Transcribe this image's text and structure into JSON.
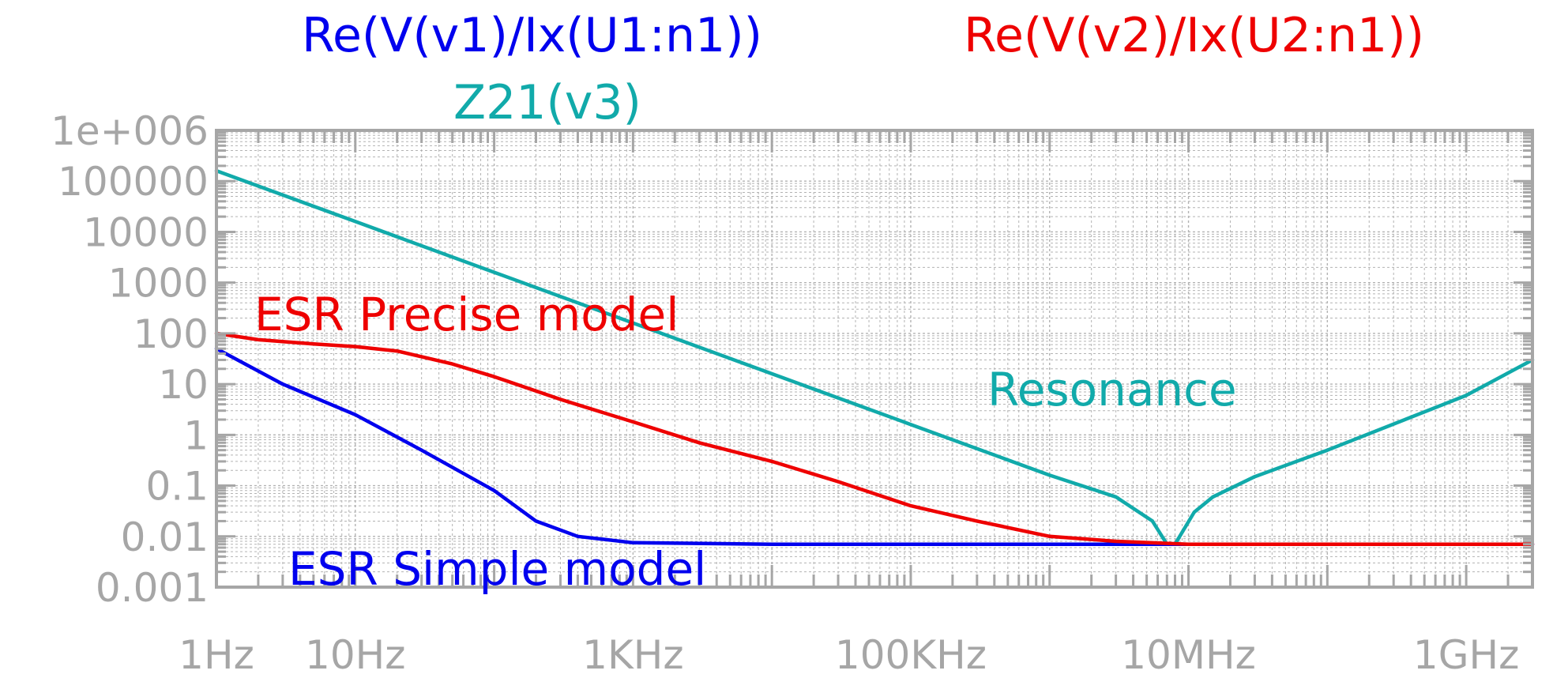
{
  "chart_data": {
    "type": "line",
    "x_scale": "log",
    "y_scale": "log",
    "xlim_hz": [
      1,
      3000000000
    ],
    "ylim": [
      0.001,
      1000000
    ],
    "x_ticks": [
      {
        "value": 1,
        "label": "1Hz"
      },
      {
        "value": 10,
        "label": "10Hz"
      },
      {
        "value": 1000,
        "label": "1KHz"
      },
      {
        "value": 100000,
        "label": "100KHz"
      },
      {
        "value": 10000000,
        "label": "10MHz"
      },
      {
        "value": 1000000000,
        "label": "1GHz"
      }
    ],
    "y_ticks": [
      {
        "value": 1000000,
        "label": "1e+006"
      },
      {
        "value": 100000,
        "label": "100000"
      },
      {
        "value": 10000,
        "label": "10000"
      },
      {
        "value": 1000,
        "label": "1000"
      },
      {
        "value": 100,
        "label": "100"
      },
      {
        "value": 10,
        "label": "10"
      },
      {
        "value": 1,
        "label": "1"
      },
      {
        "value": 0.1,
        "label": "0.1"
      },
      {
        "value": 0.01,
        "label": "0.01"
      },
      {
        "value": 0.001,
        "label": "0.001"
      }
    ],
    "grid": true,
    "colors": {
      "frame": "#a6a6a6",
      "grid": "#b3b3b3"
    },
    "series": [
      {
        "name": "Re(V(v1)/Ix(U1:n1))",
        "color": "#0000ee",
        "points": [
          [
            1,
            50
          ],
          [
            3,
            10
          ],
          [
            10,
            2.5
          ],
          [
            30,
            0.5
          ],
          [
            100,
            0.08
          ],
          [
            200,
            0.02
          ],
          [
            400,
            0.01
          ],
          [
            1000,
            0.0075
          ],
          [
            10000,
            0.007
          ],
          [
            3000000000,
            0.007
          ]
        ]
      },
      {
        "name": "Re(V(v2)/Ix(U2:n1))",
        "color": "#ee0000",
        "points": [
          [
            1,
            100
          ],
          [
            2,
            75
          ],
          [
            5,
            62
          ],
          [
            10,
            55
          ],
          [
            20,
            45
          ],
          [
            50,
            25
          ],
          [
            100,
            14
          ],
          [
            300,
            5
          ],
          [
            1000,
            1.8
          ],
          [
            3000,
            0.7
          ],
          [
            10000,
            0.3
          ],
          [
            30000,
            0.12
          ],
          [
            100000,
            0.04
          ],
          [
            300000,
            0.02
          ],
          [
            1000000,
            0.01
          ],
          [
            3000000,
            0.008
          ],
          [
            10000000,
            0.007
          ],
          [
            3000000000,
            0.007
          ]
        ]
      },
      {
        "name": "Z21(v3)",
        "color": "#11aaaa",
        "points": [
          [
            1,
            160000
          ],
          [
            10,
            16000
          ],
          [
            100,
            1600
          ],
          [
            1000,
            160
          ],
          [
            10000,
            16
          ],
          [
            100000,
            1.6
          ],
          [
            1000000,
            0.16
          ],
          [
            3000000,
            0.06
          ],
          [
            5500000,
            0.02
          ],
          [
            7000000,
            0.007
          ],
          [
            8000000,
            0.007
          ],
          [
            11000000,
            0.03
          ],
          [
            15000000,
            0.06
          ],
          [
            30000000,
            0.15
          ],
          [
            100000000,
            0.5
          ],
          [
            1000000000,
            6
          ],
          [
            3000000000,
            30
          ]
        ]
      }
    ],
    "annotations": [
      {
        "text": "ESR Precise model",
        "color": "#ee0000"
      },
      {
        "text": "ESR Simple model",
        "color": "#0000ee"
      },
      {
        "text": "Resonance",
        "color": "#11aaaa"
      }
    ]
  }
}
